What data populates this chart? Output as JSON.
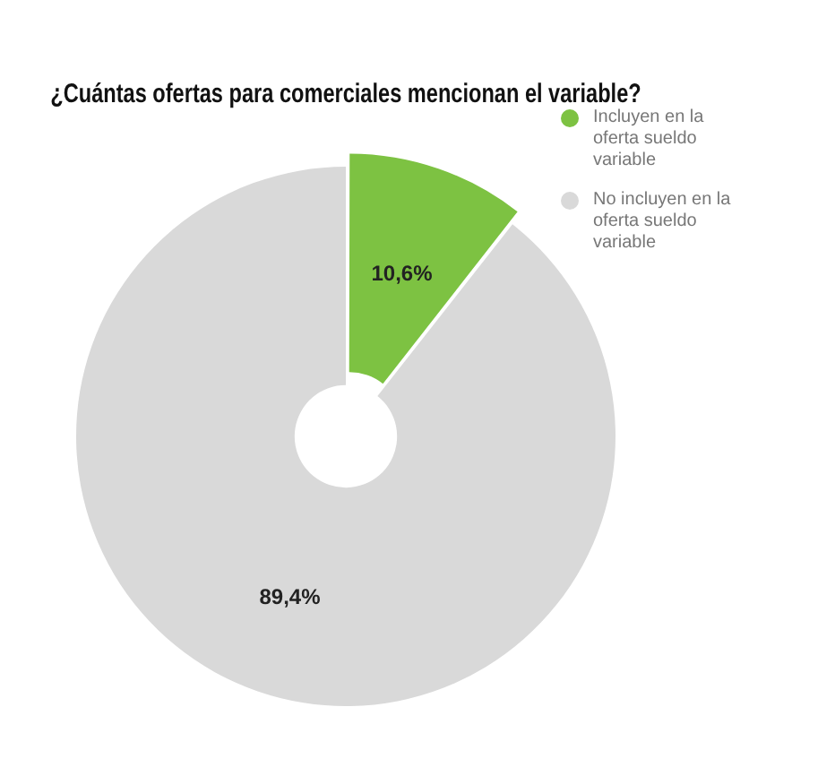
{
  "chart_data": {
    "type": "donut",
    "title": "¿Cuántas ofertas para comerciales mencionan el variable?",
    "categories": [
      "Incluyen en la oferta sueldo variable",
      "No incluyen en la oferta sueldo variable"
    ],
    "values": [
      10.6,
      89.4
    ],
    "colors": [
      "#7dc242",
      "#d9d9d9"
    ],
    "value_labels": [
      "10,6%",
      "89,4%"
    ],
    "legend": "top right"
  }
}
